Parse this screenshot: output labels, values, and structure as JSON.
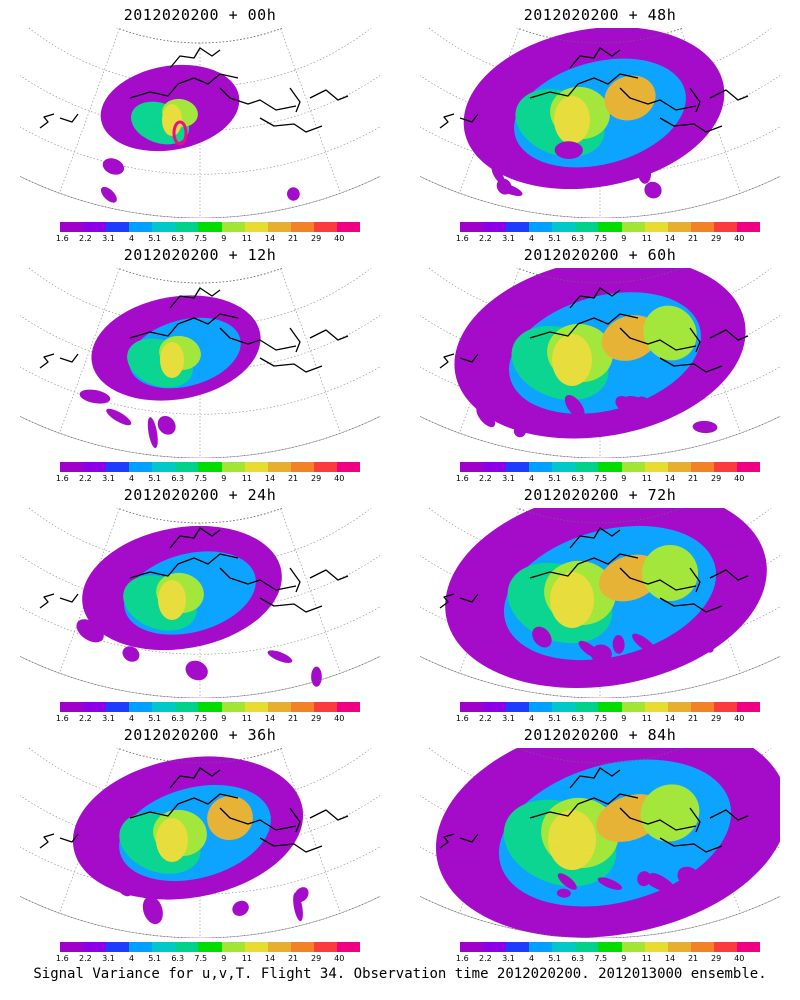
{
  "colorbar": {
    "labels": [
      "1.6",
      "2.2",
      "3.1",
      "4",
      "5.1",
      "6.3",
      "7.5",
      "9",
      "11",
      "14",
      "21",
      "29",
      "40"
    ],
    "colors": [
      "#a000c8",
      "#8c00e6",
      "#1e3cff",
      "#00a0ff",
      "#00c8c8",
      "#00d28c",
      "#00dc00",
      "#a0e632",
      "#e6dc32",
      "#e6af2d",
      "#f08228",
      "#fa3c3c",
      "#f00082"
    ]
  },
  "panels": [
    {
      "title": "2012020200 + 00h",
      "level": 0
    },
    {
      "title": "2012020200 + 48h",
      "level": 4
    },
    {
      "title": "2012020200 + 12h",
      "level": 1
    },
    {
      "title": "2012020200 + 60h",
      "level": 5
    },
    {
      "title": "2012020200 + 24h",
      "level": 2
    },
    {
      "title": "2012020200 + 72h",
      "level": 6
    },
    {
      "title": "2012020200 + 36h",
      "level": 3
    },
    {
      "title": "2012020200 + 84h",
      "level": 7
    }
  ],
  "caption": "Signal Variance for u,v,T. Flight 34. Observation time 2012020200. 2012013000 ensemble."
}
